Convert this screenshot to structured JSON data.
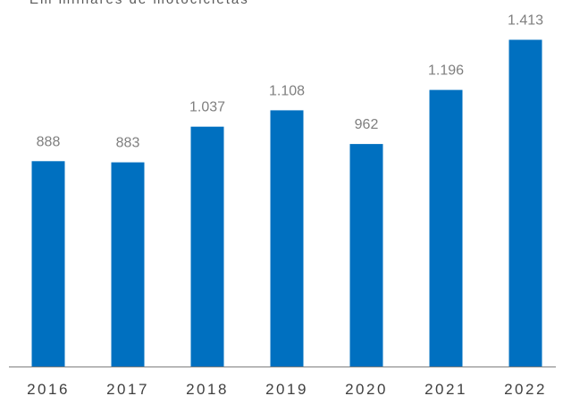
{
  "subtitle": "Em milhares de motocicletas",
  "colors": {
    "bar": "#0070c0",
    "value_label": "#7f7f7f",
    "category_label": "#404040",
    "axis": "#808080"
  },
  "chart_data": {
    "type": "bar",
    "categories": [
      "2016",
      "2017",
      "2018",
      "2019",
      "2020",
      "2021",
      "2022"
    ],
    "values": [
      888,
      883,
      1037,
      1108,
      962,
      1196,
      1413
    ],
    "value_labels": [
      "888",
      "883",
      "1.037",
      "1.108",
      "962",
      "1.196",
      "1.413"
    ],
    "title": "",
    "subtitle": "Em milhares de motocicletas",
    "xlabel": "",
    "ylabel": "",
    "ylim": [
      0,
      1600
    ],
    "grid": false,
    "legend": "none"
  }
}
